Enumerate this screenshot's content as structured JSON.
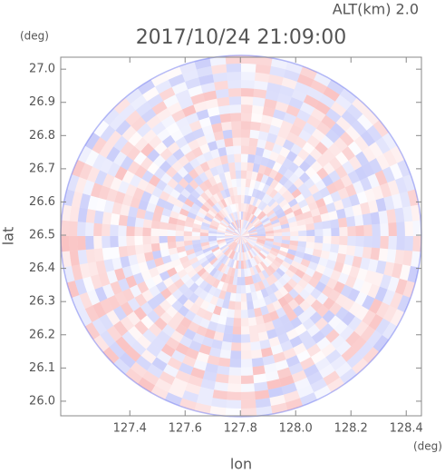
{
  "chart_data": {
    "type": "radar-image",
    "title": "2017/10/24 21:09:00",
    "subtitle": "ALT(km) 2.0",
    "x_label": "lon",
    "y_label": "lat",
    "x_unit": "(deg)",
    "y_unit": "(deg)",
    "xlim": [
      127.15,
      128.455
    ],
    "ylim": [
      25.956,
      27.036
    ],
    "xticks": [
      127.4,
      127.6,
      127.8,
      {
        "value": 128.0,
        "label": "128.0"
      },
      128.2,
      128.4
    ],
    "yticks": [
      {
        "value": 26.0,
        "label": "26.0"
      },
      26.1,
      26.2,
      26.3,
      26.4,
      26.5,
      26.6,
      26.7,
      26.8,
      26.9,
      {
        "value": 27.0,
        "label": "27.0"
      }
    ]
  }
}
